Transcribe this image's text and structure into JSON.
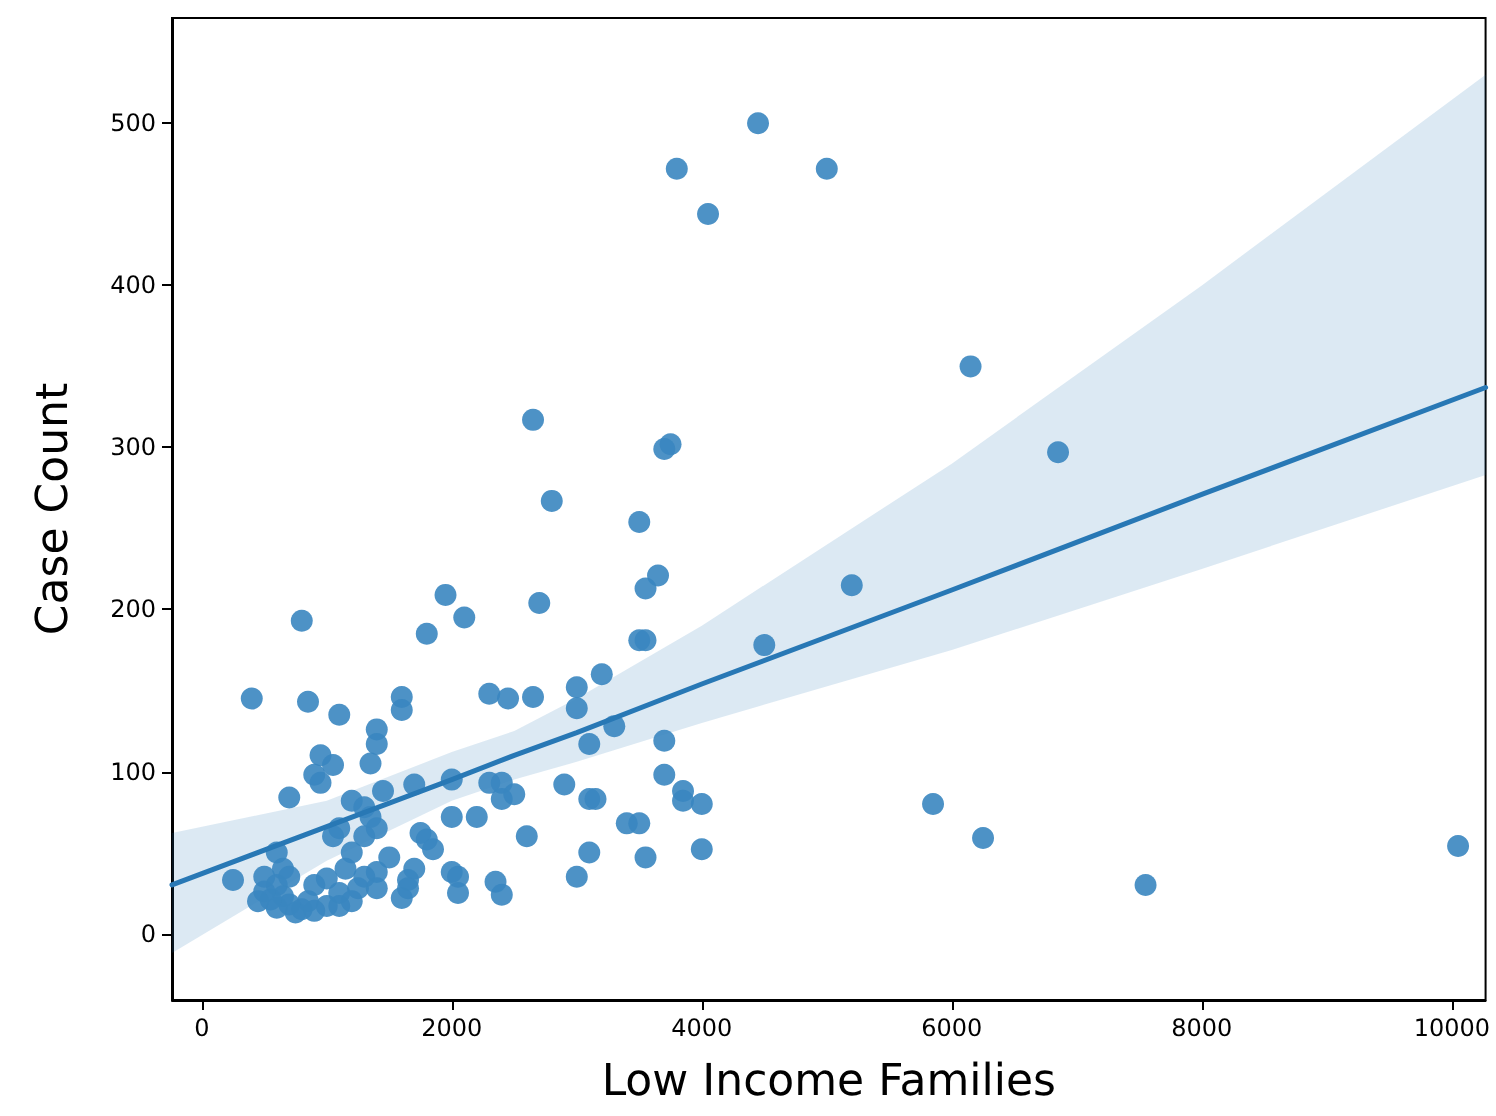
{
  "chart_data": {
    "type": "scatter",
    "xlabel": "Low Income Families",
    "ylabel": "Case Count",
    "xlim": [
      -238,
      10270
    ],
    "ylim": [
      -41,
      565
    ],
    "xticks": [
      0,
      2000,
      4000,
      6000,
      8000,
      10000
    ],
    "yticks": [
      0,
      100,
      200,
      300,
      400,
      500
    ],
    "marker": "circle",
    "series": [
      {
        "color": "#3a86c0",
        "x": [
          4450,
          3800,
          5000,
          4050,
          6150,
          6850,
          2650,
          3750,
          3700,
          2800,
          3500,
          3650,
          3550,
          5200,
          1950,
          2100,
          800,
          1800,
          3500,
          3550,
          4500,
          2700,
          3200,
          3000,
          2300,
          2650,
          2450,
          1600,
          1600,
          400,
          850,
          1100,
          3000,
          3300,
          3700,
          1400,
          1400,
          3100,
          2900,
          3700,
          3850,
          3850,
          4000,
          5850,
          3400,
          3500,
          3100,
          3150,
          2300,
          2400,
          2000,
          2200,
          2000,
          1700,
          1350,
          1050,
          950,
          900,
          950,
          700,
          1200,
          1300,
          1450,
          2400,
          2500,
          2600,
          1750,
          1800,
          1850,
          1100,
          1050,
          1300,
          1400,
          1350,
          1200,
          1500,
          1700,
          1650,
          3000,
          3100,
          3550,
          4000,
          6250,
          7550,
          10050,
          2050,
          1600,
          1650,
          2400,
          2350,
          2000,
          2050,
          1400,
          1300,
          1150,
          1000,
          1100,
          1250,
          1400,
          1100,
          1000,
          900,
          850,
          800,
          750,
          700,
          650,
          600,
          600,
          550,
          500,
          450,
          500,
          600,
          650,
          700,
          250,
          900,
          1200
        ],
        "values": [
          500,
          472,
          472,
          444,
          350,
          297,
          317,
          302,
          299,
          267,
          254,
          221,
          213,
          215,
          209,
          195,
          193,
          185,
          181,
          181,
          178,
          204,
          160,
          152,
          148,
          146,
          145,
          146,
          138,
          145,
          143,
          135,
          139,
          128,
          119,
          126,
          117,
          117,
          92,
          98,
          88,
          82,
          80,
          80,
          68,
          68,
          83,
          83,
          93,
          93,
          95,
          72,
          72,
          92,
          105,
          104,
          110,
          98,
          93,
          84,
          82,
          78,
          88,
          83,
          86,
          60,
          62,
          58,
          52,
          65,
          60,
          60,
          65,
          72,
          50,
          47,
          40,
          33,
          35,
          50,
          47,
          52,
          59,
          30,
          54,
          25,
          22,
          28,
          24,
          32,
          38,
          35,
          38,
          35,
          40,
          34,
          25,
          28,
          28,
          17,
          17,
          30,
          20,
          15,
          13,
          18,
          23,
          30,
          16,
          21,
          26,
          20,
          35,
          50,
          40,
          35,
          33,
          14,
          20
        ]
      },
      {
        "type": "line",
        "color": "#2878b5",
        "marker": "none",
        "x": [
          -238,
          1000,
          2000,
          2500,
          3000,
          4000,
          6000,
          8000,
          10270
        ],
        "values": [
          30,
          66,
          95,
          110,
          124,
          154,
          212,
          271,
          337
        ],
        "lower": [
          -12,
          45,
          82,
          95,
          106,
          130,
          175,
          225,
          283
        ],
        "upper": [
          62,
          82,
          112,
          125,
          145,
          190,
          290,
          400,
          530
        ]
      }
    ]
  }
}
